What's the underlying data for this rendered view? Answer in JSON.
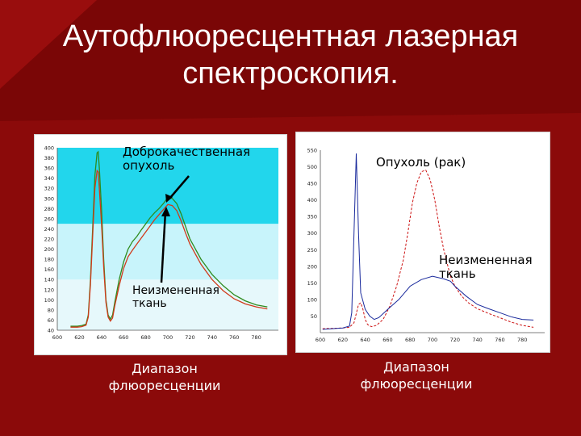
{
  "slide": {
    "title_lines": [
      "Аутофлюоресцентная лазерная",
      "спектроскопия."
    ],
    "colors": {
      "background": "#8b0a0a",
      "band_light": "#c8f4fb",
      "band_dark": "#22d6ec"
    }
  },
  "chart_data": [
    {
      "type": "line",
      "title": "",
      "xlabel": "Диапазон\nфлюоресценции",
      "ylabel": "",
      "xlim": [
        600,
        800
      ],
      "ylim": [
        40,
        400
      ],
      "x_ticks": [
        "600",
        "620",
        "640",
        "660",
        "680",
        "700",
        "720",
        "740",
        "760",
        "780"
      ],
      "y_ticks": [
        "40",
        "60",
        "80",
        "100",
        "120",
        "140",
        "160",
        "180",
        "200",
        "220",
        "240",
        "260",
        "280",
        "300",
        "320",
        "340",
        "360",
        "380",
        "400"
      ],
      "annotations": [
        "Доброкачественная\nопухоль",
        "Неизмененная\nткань"
      ],
      "series": [
        {
          "color": "#2e8b1e",
          "x": [
            612,
            618,
            622,
            626,
            628,
            630,
            632,
            634,
            636,
            637,
            638,
            640,
            642,
            644,
            646,
            648,
            650,
            652,
            656,
            660,
            664,
            668,
            672,
            676,
            680,
            684,
            688,
            692,
            696,
            700,
            704,
            708,
            712,
            716,
            720,
            730,
            740,
            750,
            760,
            770,
            780,
            790
          ],
          "values": [
            48,
            48,
            49,
            52,
            70,
            140,
            240,
            345,
            390,
            392,
            360,
            280,
            180,
            100,
            70,
            62,
            70,
            95,
            140,
            175,
            200,
            215,
            225,
            238,
            250,
            262,
            272,
            280,
            290,
            302,
            300,
            290,
            270,
            245,
            220,
            180,
            150,
            128,
            110,
            98,
            90,
            86
          ]
        },
        {
          "color": "#d03a1a",
          "x": [
            612,
            618,
            622,
            626,
            628,
            630,
            632,
            634,
            636,
            637,
            638,
            640,
            642,
            644,
            646,
            648,
            650,
            652,
            656,
            660,
            664,
            668,
            672,
            676,
            680,
            684,
            688,
            692,
            696,
            700,
            704,
            708,
            712,
            716,
            720,
            730,
            740,
            750,
            760,
            770,
            780,
            790
          ],
          "values": [
            46,
            46,
            47,
            50,
            66,
            130,
            225,
            320,
            355,
            352,
            320,
            250,
            165,
            95,
            66,
            58,
            64,
            88,
            128,
            162,
            185,
            198,
            210,
            222,
            234,
            246,
            258,
            268,
            278,
            288,
            286,
            276,
            256,
            232,
            210,
            170,
            140,
            118,
            102,
            92,
            86,
            82
          ]
        }
      ]
    },
    {
      "type": "line",
      "title": "",
      "xlabel": "Диапазон\nфлюоресценции",
      "ylabel": "",
      "xlim": [
        600,
        800
      ],
      "ylim": [
        0,
        550
      ],
      "x_ticks": [
        "600",
        "620",
        "640",
        "660",
        "680",
        "700",
        "720",
        "740",
        "760",
        "780"
      ],
      "y_ticks": [
        "50",
        "100",
        "150",
        "200",
        "250",
        "300",
        "350",
        "400",
        "450",
        "500",
        "550"
      ],
      "annotations": [
        "Опухоль (рак)",
        "Неизмененная\nткань"
      ],
      "series": [
        {
          "color": "#cc1111",
          "x": [
            602,
            620,
            626,
            630,
            634,
            636,
            638,
            640,
            642,
            644,
            646,
            650,
            656,
            662,
            668,
            674,
            678,
            682,
            686,
            690,
            694,
            698,
            702,
            706,
            710,
            716,
            720,
            726,
            732,
            740,
            750,
            760,
            770,
            780,
            790
          ],
          "values": [
            12,
            14,
            16,
            30,
            85,
            90,
            70,
            40,
            25,
            20,
            18,
            22,
            40,
            80,
            140,
            220,
            300,
            390,
            450,
            485,
            490,
            460,
            400,
            320,
            250,
            170,
            140,
            110,
            90,
            72,
            58,
            45,
            32,
            22,
            16
          ]
        },
        {
          "color": "#1a2a9c",
          "x": [
            602,
            620,
            626,
            628,
            630,
            632,
            634,
            636,
            640,
            644,
            648,
            652,
            660,
            670,
            680,
            690,
            700,
            710,
            716,
            720,
            730,
            740,
            750,
            760,
            770,
            780,
            790
          ],
          "values": [
            10,
            14,
            20,
            60,
            300,
            540,
            300,
            120,
            70,
            50,
            40,
            45,
            70,
            100,
            140,
            160,
            170,
            162,
            155,
            140,
            110,
            85,
            72,
            60,
            48,
            40,
            38
          ]
        }
      ]
    }
  ]
}
